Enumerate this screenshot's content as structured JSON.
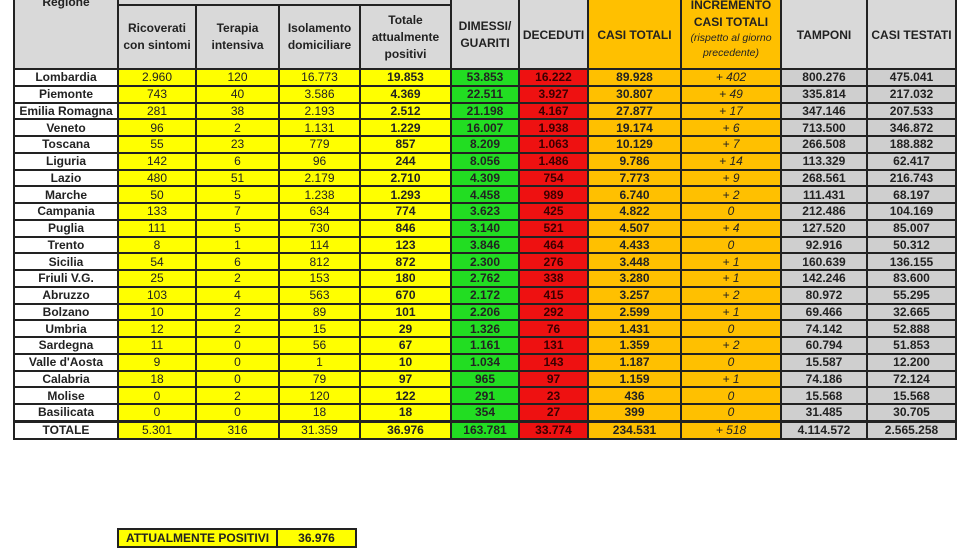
{
  "header": {
    "regione": "Regione",
    "ricoverati": "Ricoverati con sintomi",
    "terapia": "Terapia intensiva",
    "isolamento": "Isolamento domiciliare",
    "totale_positivi": "Totale attualmente positivi",
    "dimessi": "DIMESSI/ GUARITI",
    "deceduti": "DECEDUTI",
    "casi_totali": "CASI TOTALI",
    "incremento": "INCREMENTO CASI  TOTALI",
    "incremento_note": "(rispetto al giorno precedente)",
    "tamponi": "TAMPONI",
    "casi_testati": "CASI TESTATI"
  },
  "rows": [
    [
      "Lombardia",
      "2.960",
      "120",
      "16.773",
      "19.853",
      "53.853",
      "16.222",
      "89.928",
      "+ 402",
      "800.276",
      "475.041"
    ],
    [
      "Piemonte",
      "743",
      "40",
      "3.586",
      "4.369",
      "22.511",
      "3.927",
      "30.807",
      "+ 49",
      "335.814",
      "217.032"
    ],
    [
      "Emilia Romagna",
      "281",
      "38",
      "2.193",
      "2.512",
      "21.198",
      "4.167",
      "27.877",
      "+ 17",
      "347.146",
      "207.533"
    ],
    [
      "Veneto",
      "96",
      "2",
      "1.131",
      "1.229",
      "16.007",
      "1.938",
      "19.174",
      "+ 6",
      "713.500",
      "346.872"
    ],
    [
      "Toscana",
      "55",
      "23",
      "779",
      "857",
      "8.209",
      "1.063",
      "10.129",
      "+ 7",
      "266.508",
      "188.882"
    ],
    [
      "Liguria",
      "142",
      "6",
      "96",
      "244",
      "8.056",
      "1.486",
      "9.786",
      "+ 14",
      "113.329",
      "62.417"
    ],
    [
      "Lazio",
      "480",
      "51",
      "2.179",
      "2.710",
      "4.309",
      "754",
      "7.773",
      "+ 9",
      "268.561",
      "216.743"
    ],
    [
      "Marche",
      "50",
      "5",
      "1.238",
      "1.293",
      "4.458",
      "989",
      "6.740",
      "+ 2",
      "111.431",
      "68.197"
    ],
    [
      "Campania",
      "133",
      "7",
      "634",
      "774",
      "3.623",
      "425",
      "4.822",
      "0",
      "212.486",
      "104.169"
    ],
    [
      "Puglia",
      "111",
      "5",
      "730",
      "846",
      "3.140",
      "521",
      "4.507",
      "+ 4",
      "127.520",
      "85.007"
    ],
    [
      "Trento",
      "8",
      "1",
      "114",
      "123",
      "3.846",
      "464",
      "4.433",
      "0",
      "92.916",
      "50.312"
    ],
    [
      "Sicilia",
      "54",
      "6",
      "812",
      "872",
      "2.300",
      "276",
      "3.448",
      "+ 1",
      "160.639",
      "136.155"
    ],
    [
      "Friuli V.G.",
      "25",
      "2",
      "153",
      "180",
      "2.762",
      "338",
      "3.280",
      "+ 1",
      "142.246",
      "83.600"
    ],
    [
      "Abruzzo",
      "103",
      "4",
      "563",
      "670",
      "2.172",
      "415",
      "3.257",
      "+ 2",
      "80.972",
      "55.295"
    ],
    [
      "Bolzano",
      "10",
      "2",
      "89",
      "101",
      "2.206",
      "292",
      "2.599",
      "+ 1",
      "69.466",
      "32.665"
    ],
    [
      "Umbria",
      "12",
      "2",
      "15",
      "29",
      "1.326",
      "76",
      "1.431",
      "0",
      "74.142",
      "52.888"
    ],
    [
      "Sardegna",
      "11",
      "0",
      "56",
      "67",
      "1.161",
      "131",
      "1.359",
      "+ 2",
      "60.794",
      "51.853"
    ],
    [
      "Valle d'Aosta",
      "9",
      "0",
      "1",
      "10",
      "1.034",
      "143",
      "1.187",
      "0",
      "15.587",
      "12.200"
    ],
    [
      "Calabria",
      "18",
      "0",
      "79",
      "97",
      "965",
      "97",
      "1.159",
      "+ 1",
      "74.186",
      "72.124"
    ],
    [
      "Molise",
      "0",
      "2",
      "120",
      "122",
      "291",
      "23",
      "436",
      "0",
      "15.568",
      "15.568"
    ],
    [
      "Basilicata",
      "0",
      "0",
      "18",
      "18",
      "354",
      "27",
      "399",
      "0",
      "31.485",
      "30.705"
    ],
    [
      "TOTALE",
      "5.301",
      "316",
      "31.359",
      "36.976",
      "163.781",
      "33.774",
      "234.531",
      "+ 518",
      "4.114.572",
      "2.565.258"
    ]
  ],
  "summary": {
    "label": "ATTUALMENTE POSITIVI",
    "value": "36.976"
  },
  "colors": {
    "yellow": "#ffff00",
    "green": "#22dd22",
    "red": "#ee1111",
    "orange": "#ffc000",
    "grey": "#cfcfcf"
  }
}
